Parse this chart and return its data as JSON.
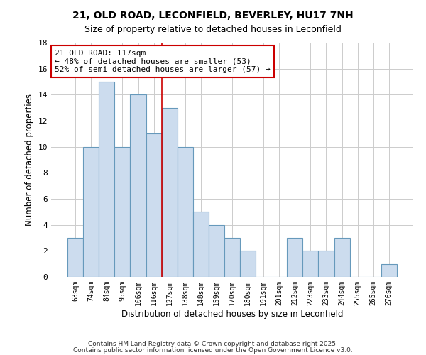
{
  "title": "21, OLD ROAD, LECONFIELD, BEVERLEY, HU17 7NH",
  "subtitle": "Size of property relative to detached houses in Leconfield",
  "xlabel": "Distribution of detached houses by size in Leconfield",
  "ylabel": "Number of detached properties",
  "bar_labels": [
    "63sqm",
    "74sqm",
    "84sqm",
    "95sqm",
    "106sqm",
    "116sqm",
    "127sqm",
    "138sqm",
    "148sqm",
    "159sqm",
    "170sqm",
    "180sqm",
    "191sqm",
    "201sqm",
    "212sqm",
    "223sqm",
    "233sqm",
    "244sqm",
    "255sqm",
    "265sqm",
    "276sqm"
  ],
  "bar_values": [
    3,
    10,
    15,
    10,
    14,
    11,
    13,
    10,
    5,
    4,
    3,
    2,
    0,
    0,
    3,
    2,
    2,
    3,
    0,
    0,
    1
  ],
  "bar_color": "#ccdcee",
  "bar_edge_color": "#6699bb",
  "highlight_bar_index": 5,
  "highlight_color": "#cc0000",
  "annotation_text": "21 OLD ROAD: 117sqm\n← 48% of detached houses are smaller (53)\n52% of semi-detached houses are larger (57) →",
  "annotation_box_color": "#ffffff",
  "annotation_box_edge": "#cc0000",
  "ylim": [
    0,
    18
  ],
  "yticks": [
    0,
    2,
    4,
    6,
    8,
    10,
    12,
    14,
    16,
    18
  ],
  "footer_line1": "Contains HM Land Registry data © Crown copyright and database right 2025.",
  "footer_line2": "Contains public sector information licensed under the Open Government Licence v3.0.",
  "background_color": "#ffffff",
  "grid_color": "#cccccc",
  "title_fontsize": 10,
  "subtitle_fontsize": 9
}
